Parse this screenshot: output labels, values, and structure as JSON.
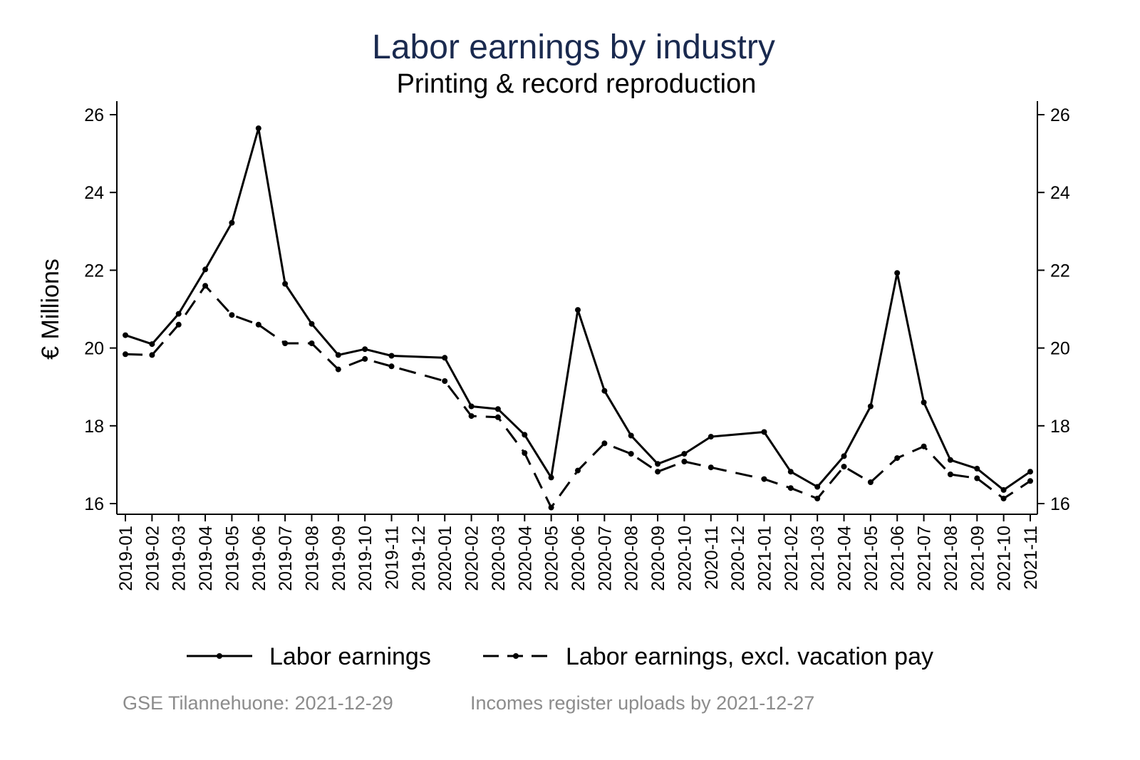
{
  "chart_data": {
    "type": "line",
    "title": "Labor earnings by industry",
    "subtitle": "Printing & record reproduction",
    "ylabel": "€ Millions",
    "xlabel": "",
    "ylim": [
      15.7,
      26.4
    ],
    "yticks": [
      16,
      18,
      20,
      22,
      24,
      26
    ],
    "grid": false,
    "legend_position": "bottom",
    "categories": [
      "2019-01",
      "2019-02",
      "2019-03",
      "2019-04",
      "2019-05",
      "2019-06",
      "2019-07",
      "2019-08",
      "2019-09",
      "2019-10",
      "2019-11",
      "2019-12",
      "2020-01",
      "2020-02",
      "2020-03",
      "2020-04",
      "2020-05",
      "2020-06",
      "2020-07",
      "2020-08",
      "2020-09",
      "2020-10",
      "2020-11",
      "2020-12",
      "2021-01",
      "2021-02",
      "2021-03",
      "2021-04",
      "2021-05",
      "2021-06",
      "2021-07",
      "2021-08",
      "2021-09",
      "2021-10",
      "2021-11"
    ],
    "series": [
      {
        "name": "Labor earnings",
        "style": "solid",
        "color": "#000000",
        "values": [
          20.33,
          20.1,
          20.88,
          22.02,
          23.22,
          25.65,
          21.65,
          20.62,
          19.82,
          19.97,
          19.8,
          null,
          19.75,
          18.5,
          18.43,
          17.77,
          16.67,
          20.98,
          18.9,
          17.75,
          17.02,
          17.28,
          17.72,
          null,
          17.84,
          16.82,
          16.43,
          17.22,
          18.5,
          21.93,
          18.6,
          17.12,
          16.9,
          16.35,
          16.82
        ]
      },
      {
        "name": "Labor earnings, excl. vacation pay",
        "style": "dashed",
        "color": "#000000",
        "values": [
          19.84,
          19.82,
          20.6,
          21.6,
          20.85,
          20.6,
          20.12,
          20.12,
          19.45,
          19.72,
          19.53,
          null,
          19.15,
          18.25,
          18.22,
          17.3,
          15.9,
          16.85,
          17.55,
          17.28,
          16.82,
          17.08,
          16.93,
          null,
          16.63,
          16.4,
          16.13,
          16.95,
          16.55,
          17.17,
          17.47,
          16.75,
          16.65,
          16.13,
          16.58
        ]
      }
    ]
  },
  "footer": {
    "left": "GSE Tilannehuone: 2021-12-29",
    "right": "Incomes register uploads by 2021-12-27"
  }
}
